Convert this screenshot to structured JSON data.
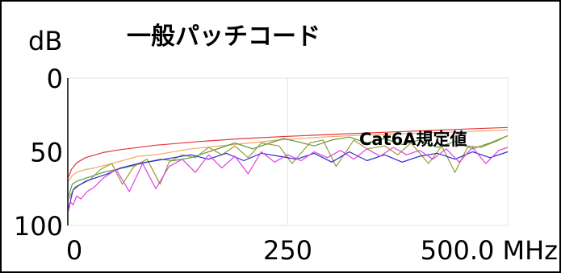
{
  "chart_data": {
    "type": "line",
    "title": "一般パッチコード",
    "ylabel": "dB",
    "x_unit": "MHz",
    "xlim": [
      0,
      500
    ],
    "ylim": [
      0,
      100
    ],
    "y_inverted": true,
    "grid": true,
    "x_tick_labels": [
      "0",
      "250",
      "500.0 MHz"
    ],
    "x_tick_values": [
      0,
      250,
      500
    ],
    "y_tick_labels": [
      "0",
      "50",
      "100"
    ],
    "y_tick_values": [
      0,
      50,
      100
    ],
    "annotation": "Cat6A規定値",
    "colors": {
      "limit": "#e8323c",
      "orange": "#f4a860",
      "green": "#5a9a3a",
      "olive": "#9a9a3a",
      "blue": "#2b2bd6",
      "magenta": "#e040e0"
    },
    "series": [
      {
        "color_key": "limit",
        "x": [
          1,
          4,
          10,
          20,
          40,
          60,
          100,
          150,
          200,
          250,
          300,
          350,
          400,
          450,
          500
        ],
        "y": [
          67,
          62,
          57.5,
          54,
          50.5,
          48.5,
          45.5,
          43,
          41,
          39.5,
          38.2,
          37,
          35.8,
          34.6,
          33.5
        ]
      },
      {
        "color_key": "orange",
        "x": [
          1,
          5,
          10,
          20,
          30,
          50,
          80,
          100,
          140,
          190,
          240,
          290,
          340,
          390,
          440,
          490,
          500
        ],
        "y": [
          70,
          66,
          64,
          62,
          61,
          58,
          53,
          52,
          48,
          45,
          42,
          40,
          38.5,
          37.5,
          36.5,
          35.5,
          35
        ]
      },
      {
        "color_key": "green",
        "x": [
          1,
          5,
          10,
          20,
          30,
          40,
          55,
          70,
          90,
          105,
          120,
          140,
          160,
          175,
          190,
          210,
          230,
          245,
          260,
          280,
          300,
          320,
          340,
          360,
          380,
          400,
          420,
          440,
          460,
          480,
          500
        ],
        "y": [
          80,
          72,
          70,
          68,
          66,
          64,
          62,
          60,
          57,
          55,
          56,
          54,
          50,
          47,
          44,
          48,
          44,
          41,
          43,
          46,
          42,
          40,
          44,
          41,
          45,
          42,
          47,
          43,
          48,
          44,
          39
        ]
      },
      {
        "color_key": "olive",
        "x": [
          1,
          8,
          15,
          25,
          37,
          50,
          62,
          75,
          90,
          105,
          115,
          130,
          145,
          160,
          175,
          190,
          205,
          220,
          240,
          255,
          275,
          290,
          305,
          325,
          340,
          360,
          375,
          390,
          410,
          425,
          440,
          455,
          470,
          490,
          500
        ],
        "y": [
          82,
          74,
          72,
          69,
          62,
          58,
          72,
          60,
          55,
          72,
          57,
          52,
          54,
          47,
          52,
          46,
          54,
          44,
          46,
          58,
          44,
          42,
          60,
          42,
          48,
          46,
          52,
          44,
          58,
          46,
          64,
          46,
          47,
          42,
          39
        ]
      },
      {
        "color_key": "blue",
        "x": [
          1,
          6,
          12,
          20,
          30,
          45,
          60,
          80,
          100,
          120,
          140,
          160,
          180,
          200,
          220,
          240,
          260,
          280,
          300,
          320,
          340,
          360,
          380,
          400,
          420,
          440,
          460,
          480,
          500
        ],
        "y": [
          88,
          76,
          73,
          70,
          68,
          65,
          61,
          58,
          56,
          54,
          52,
          55,
          51,
          56,
          51,
          53,
          55,
          51,
          57,
          50,
          56,
          52,
          57,
          53,
          51,
          55,
          50,
          54,
          50
        ]
      },
      {
        "color_key": "magenta",
        "x": [
          1,
          3,
          6,
          10,
          15,
          22,
          30,
          40,
          55,
          70,
          85,
          100,
          115,
          130,
          145,
          160,
          175,
          190,
          205,
          220,
          235,
          250,
          265,
          280,
          295,
          310,
          325,
          340,
          355,
          370,
          385,
          400,
          415,
          430,
          445,
          460,
          475,
          490,
          500
        ],
        "y": [
          90,
          84,
          86,
          80,
          82,
          77,
          74,
          68,
          62,
          77,
          58,
          75,
          60,
          55,
          64,
          52,
          61,
          53,
          65,
          50,
          57,
          52,
          56,
          50,
          54,
          49,
          55,
          48,
          53,
          47,
          52,
          49,
          55,
          48,
          57,
          47,
          58,
          49,
          47
        ]
      }
    ]
  }
}
